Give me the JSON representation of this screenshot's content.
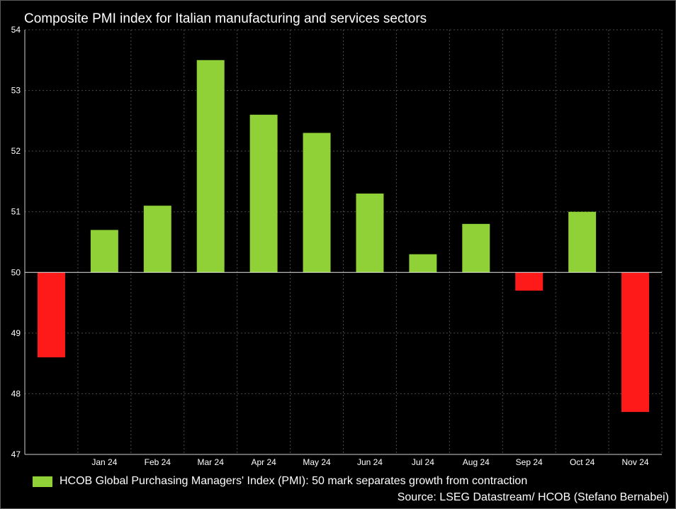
{
  "chart_data": {
    "type": "bar",
    "title": "Composite PMI index for Italian manufacturing and services sectors",
    "categories": [
      "",
      "Jan 24",
      "Feb 24",
      "Mar 24",
      "Apr 24",
      "May 24",
      "Jun 24",
      "Jul 24",
      "Aug 24",
      "Sep 24",
      "Oct 24",
      "Nov 24"
    ],
    "series": [
      {
        "name": "HCOB Global Purchasing Managers' Index (PMI): 50 mark separates growth from contraction",
        "values": [
          48.6,
          50.7,
          51.1,
          53.5,
          52.6,
          52.3,
          51.3,
          50.3,
          50.8,
          49.7,
          51.0,
          47.7
        ]
      }
    ],
    "baseline": 50,
    "ylim": [
      47,
      54
    ],
    "yticks": [
      "47",
      "48",
      "49",
      "50",
      "51",
      "52",
      "53",
      "54"
    ],
    "xlabel": "",
    "ylabel": "",
    "grid": true,
    "legend_position": "bottom-left",
    "colors": {
      "positive": "#8fd137",
      "negative": "#ff1a1a",
      "background": "#000000",
      "grid": "#4a4a4a",
      "text": "#ffffff"
    },
    "source": "Source: LSEG Datastream/ HCOB (Stefano Bernabei)"
  }
}
